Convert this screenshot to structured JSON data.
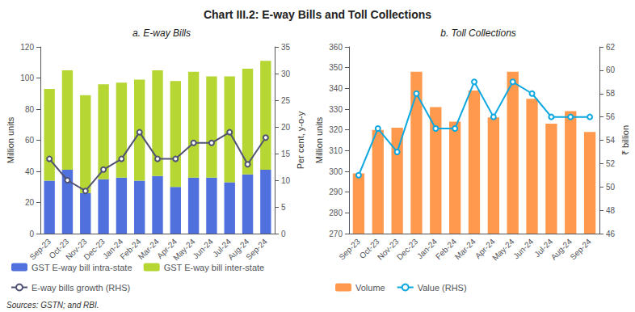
{
  "title": "Chart III.2: E-way Bills and Toll Collections",
  "annotations": [
    "Sources: GSTN; and RBI."
  ],
  "chart_data": [
    {
      "type": "bar",
      "title": "a. E-way Bills",
      "categories": [
        "Sep-23",
        "Oct-23",
        "Nov-23",
        "Dec-23",
        "Jan-24",
        "Feb-24",
        "Mar-24",
        "Apr-24",
        "May-24",
        "Jun-24",
        "Jul-24",
        "Aug-24",
        "Sep-24"
      ],
      "ylabel": "Million units",
      "y2label": "Per cent, y-o-y",
      "ylim": [
        0,
        120
      ],
      "yticks": [
        0,
        20,
        40,
        60,
        80,
        100,
        120
      ],
      "y2lim": [
        0,
        35
      ],
      "y2ticks": [
        0,
        5,
        10,
        15,
        20,
        25,
        30,
        35
      ],
      "stacked": true,
      "grid": false,
      "legend": "bottom",
      "series": [
        {
          "name": "GST E-way bill intra-state",
          "type": "bar",
          "values": [
            34,
            41,
            26,
            35,
            36,
            34,
            37,
            30,
            36,
            36,
            33,
            38,
            41
          ]
        },
        {
          "name": "GST E-way bill inter-state",
          "type": "bar",
          "values": [
            59,
            64,
            63,
            61,
            61,
            65,
            68,
            68,
            68,
            65,
            68,
            68,
            70
          ]
        },
        {
          "name": "E-way bills growth (RHS)",
          "type": "line",
          "axis": "y2",
          "values": [
            14,
            10,
            8,
            12,
            14,
            19,
            14,
            14,
            17,
            17,
            19,
            13,
            18
          ]
        }
      ]
    },
    {
      "type": "bar",
      "title": "b. Toll Collections",
      "categories": [
        "Sep-23",
        "Oct-23",
        "Nov-23",
        "Dec-23",
        "Jan-24",
        "Feb-24",
        "Mar-24",
        "Apr-24",
        "May-24",
        "Jun-24",
        "Jul-24",
        "Aug-24",
        "Sep-24"
      ],
      "ylabel": "Million units",
      "y2label": "₹ billion",
      "ylim": [
        270,
        360
      ],
      "yticks": [
        270,
        280,
        290,
        300,
        310,
        320,
        330,
        340,
        350,
        360
      ],
      "y2lim": [
        46,
        62
      ],
      "y2ticks": [
        46,
        48,
        50,
        52,
        54,
        56,
        58,
        60,
        62
      ],
      "grid": false,
      "legend": "bottom",
      "series": [
        {
          "name": "Volume",
          "type": "bar",
          "values": [
            299,
            320,
            321,
            348,
            331,
            324,
            339,
            326,
            348,
            335,
            323,
            329,
            319
          ]
        },
        {
          "name": "Value (RHS)",
          "type": "line",
          "axis": "y2",
          "values": [
            51,
            55,
            53,
            58,
            55,
            55,
            59,
            56,
            59,
            58,
            56,
            56,
            56
          ]
        }
      ]
    }
  ]
}
